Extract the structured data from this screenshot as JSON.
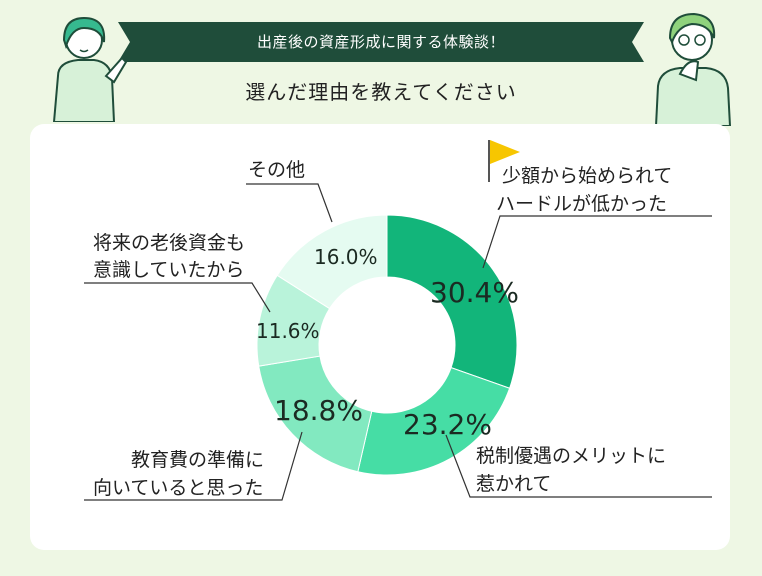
{
  "header": {
    "banner_text": "出産後の資産形成に関する体験談！",
    "question": "選んだ理由を教えてください"
  },
  "colors": {
    "banner": "#1f4d3a",
    "background": "#eef7e4",
    "flag": "#f7c600"
  },
  "chart_data": {
    "type": "pie",
    "title": "選んだ理由を教えてください",
    "slices": [
      {
        "label_lines": [
          "少額から始められて",
          "ハードルが低かった"
        ],
        "value": 30.4,
        "value_label": "30.4%",
        "color": "#12b57a"
      },
      {
        "label_lines": [
          "税制優遇のメリットに",
          "惹かれて"
        ],
        "value": 23.2,
        "value_label": "23.2%",
        "color": "#46dda5"
      },
      {
        "label_lines": [
          "教育費の準備に",
          "向いていると思った"
        ],
        "value": 18.8,
        "value_label": "18.8%",
        "color": "#82e9c0"
      },
      {
        "label_lines": [
          "将来の老後資金も",
          "意識していたから"
        ],
        "value": 11.6,
        "value_label": "11.6%",
        "color": "#b9f3da"
      },
      {
        "label_lines": [
          "その他"
        ],
        "value": 16.0,
        "value_label": "16.0%",
        "color": "#e5fbf1"
      }
    ]
  }
}
